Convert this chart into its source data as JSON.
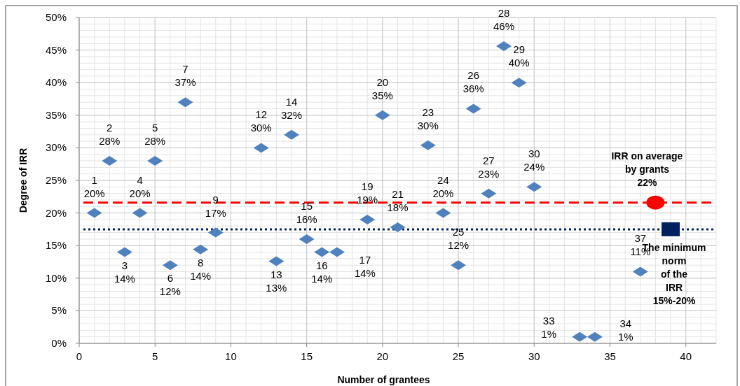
{
  "chart_data": {
    "type": "scatter",
    "xlabel": "Number  of  grantees",
    "ylabel": "Degree of IRR",
    "xlim": [
      0,
      42
    ],
    "ylim": [
      0,
      50
    ],
    "xticks": [
      0,
      5,
      10,
      15,
      20,
      25,
      30,
      35,
      40
    ],
    "yticks": [
      {
        "value": 0,
        "label": "0%"
      },
      {
        "value": 5,
        "label": "5%"
      },
      {
        "value": 10,
        "label": "10%"
      },
      {
        "value": 15,
        "label": "15%"
      },
      {
        "value": 20,
        "label": "20%"
      },
      {
        "value": 25,
        "label": "25%"
      },
      {
        "value": 30,
        "label": "30%"
      },
      {
        "value": 35,
        "label": "35%"
      },
      {
        "value": 40,
        "label": "40%"
      },
      {
        "value": 45,
        "label": "45%"
      },
      {
        "value": 50,
        "label": "50%"
      }
    ],
    "grid": true,
    "series": [
      {
        "color": "#4f81bd",
        "marker": "diamond",
        "x": [
          1,
          2,
          3,
          4,
          5,
          6,
          7,
          8,
          9,
          12,
          13,
          14,
          15,
          16,
          17,
          19,
          20,
          21,
          23,
          24,
          25,
          26,
          27,
          28,
          29,
          30,
          33,
          34,
          37
        ],
        "values": [
          20,
          28,
          14,
          20,
          28,
          12,
          37,
          14.4,
          17,
          30,
          12.6,
          32,
          16,
          14,
          14,
          19,
          35,
          17.8,
          30.4,
          20,
          12,
          36,
          23,
          45.6,
          40,
          24,
          1,
          1,
          11
        ],
        "value_labels": [
          "1\n20%",
          "2\n28%",
          "3\n14%",
          "4\n20%",
          "5\n28%",
          "6\n12%",
          "7\n37%",
          "8\n14%",
          "9\n17%",
          "12\n30%",
          "13\n13%",
          "14\n32%",
          "15\n16%",
          "16\n14%",
          "17\n14%",
          "19\n19%",
          "20\n35%",
          "21\n18%",
          "23\n30%",
          "24\n20%",
          "25\n12%",
          "26\n36%",
          "27\n23%",
          "28\n46%",
          "29\n40%",
          "30\n24%",
          "33\n1%",
          "34\n1%",
          "37\n11%"
        ]
      },
      {
        "color": "#ff0000",
        "marker": "circle",
        "x": [
          38
        ],
        "values": [
          21.6
        ]
      },
      {
        "color": "#002060",
        "marker": "square",
        "x": [
          39
        ],
        "values": [
          17.5
        ]
      }
    ],
    "ref_lines": [
      {
        "axis": "y",
        "value": 21.6,
        "color": "#ff0000",
        "line_style": "dashed"
      },
      {
        "axis": "y",
        "value": 17.5,
        "color": "#002060",
        "line_style": "dotted"
      }
    ],
    "annotations": [
      {
        "text": "IRR on average\nby grants\n22%",
        "x": 38,
        "y": 21.6
      },
      {
        "text": "The minimum\nnorm\nof the\nIRR\n15%-20%",
        "x": 39,
        "y": 17.5
      }
    ]
  }
}
